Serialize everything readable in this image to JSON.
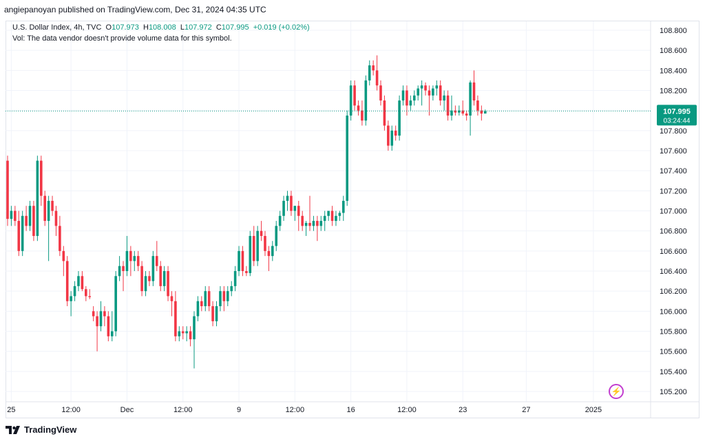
{
  "header": {
    "text": "angiepanoyan published on TradingView.com, Dec 31, 2024 04:35 UTC"
  },
  "legend": {
    "symbol": "U.S. Dollar Index, 4h, TVC",
    "o_label": "O",
    "o_value": "107.973",
    "h_label": "H",
    "h_value": "108.008",
    "l_label": "L",
    "l_value": "107.972",
    "c_label": "C",
    "c_value": "107.995",
    "change": "+0.019 (+0.02%)",
    "vol_note": "Vol: The data vendor doesn't provide volume data for this symbol."
  },
  "price_tag": {
    "price": "107.995",
    "countdown": "03:24:44"
  },
  "footer": {
    "brand": "TradingView"
  },
  "colors": {
    "up": "#089981",
    "down": "#f23645",
    "tag": "#089981",
    "grid": "#f0f3fa",
    "axis_text": "#131722"
  },
  "chart_data": {
    "type": "candlestick",
    "timeframe": "4h",
    "ylim": [
      105.05,
      108.95
    ],
    "y_ticks": [
      "108.800",
      "108.600",
      "108.400",
      "108.200",
      "108.000",
      "107.800",
      "107.600",
      "107.400",
      "107.200",
      "107.000",
      "106.800",
      "106.600",
      "106.400",
      "106.200",
      "106.000",
      "105.800",
      "105.600",
      "105.400",
      "105.200"
    ],
    "x_ticks": [
      {
        "label": "25",
        "index": 1
      },
      {
        "label": "12:00",
        "index": 17
      },
      {
        "label": "Dec",
        "index": 32
      },
      {
        "label": "12:00",
        "index": 47
      },
      {
        "label": "9",
        "index": 62
      },
      {
        "label": "12:00",
        "index": 77
      },
      {
        "label": "16",
        "index": 92
      },
      {
        "label": "12:00",
        "index": 107
      },
      {
        "label": "23",
        "index": 122
      },
      {
        "label": "27",
        "index": 139
      },
      {
        "label": "2025",
        "index": 157
      }
    ],
    "last_price": 107.995,
    "candles": [
      [
        107.5,
        107.55,
        106.85,
        106.92
      ],
      [
        106.92,
        107.05,
        106.85,
        107.0
      ],
      [
        107.0,
        107.05,
        106.85,
        106.9
      ],
      [
        106.9,
        107.0,
        106.55,
        106.6
      ],
      [
        106.6,
        107.0,
        106.55,
        106.95
      ],
      [
        106.95,
        107.05,
        106.8,
        106.85
      ],
      [
        106.85,
        107.1,
        106.8,
        107.05
      ],
      [
        107.05,
        107.1,
        106.7,
        106.75
      ],
      [
        106.75,
        107.55,
        106.7,
        107.5
      ],
      [
        107.5,
        107.55,
        107.05,
        107.15
      ],
      [
        107.15,
        107.2,
        106.85,
        106.9
      ],
      [
        106.9,
        107.15,
        106.5,
        107.1
      ],
      [
        107.1,
        107.15,
        106.95,
        107.0
      ],
      [
        107.0,
        107.05,
        106.75,
        106.85
      ],
      [
        106.85,
        106.95,
        106.55,
        106.6
      ],
      [
        106.6,
        106.65,
        106.35,
        106.5
      ],
      [
        106.5,
        106.55,
        106.05,
        106.1
      ],
      [
        106.1,
        106.2,
        105.95,
        106.15
      ],
      [
        106.15,
        106.3,
        106.1,
        106.25
      ],
      [
        106.25,
        106.4,
        106.2,
        106.35
      ],
      [
        106.35,
        106.4,
        106.2,
        106.22
      ],
      [
        106.22,
        106.25,
        106.1,
        106.15
      ],
      [
        106.15,
        106.22,
        106.12,
        106.14
      ],
      [
        106.0,
        106.05,
        105.9,
        105.95
      ],
      [
        105.95,
        106.0,
        105.6,
        105.85
      ],
      [
        105.85,
        106.1,
        105.8,
        106.0
      ],
      [
        106.0,
        106.05,
        105.85,
        105.95
      ],
      [
        105.95,
        106.0,
        105.7,
        105.75
      ],
      [
        105.75,
        106.0,
        105.7,
        105.8
      ],
      [
        105.8,
        106.4,
        105.75,
        106.35
      ],
      [
        106.35,
        106.55,
        106.3,
        106.45
      ],
      [
        106.45,
        106.5,
        106.2,
        106.4
      ],
      [
        106.4,
        106.75,
        106.35,
        106.6
      ],
      [
        106.6,
        106.65,
        106.35,
        106.5
      ],
      [
        106.5,
        106.6,
        106.4,
        106.55
      ],
      [
        106.55,
        106.6,
        106.4,
        106.45
      ],
      [
        106.45,
        106.5,
        106.15,
        106.2
      ],
      [
        106.2,
        106.4,
        106.15,
        106.35
      ],
      [
        106.35,
        106.4,
        106.25,
        106.3
      ],
      [
        106.3,
        106.6,
        106.25,
        106.55
      ],
      [
        106.55,
        106.7,
        106.4,
        106.45
      ],
      [
        106.45,
        106.5,
        106.2,
        106.25
      ],
      [
        106.25,
        106.45,
        106.2,
        106.4
      ],
      [
        106.4,
        106.45,
        106.1,
        106.15
      ],
      [
        106.15,
        106.2,
        105.95,
        106.1
      ],
      [
        106.1,
        106.2,
        105.7,
        105.75
      ],
      [
        105.75,
        105.85,
        105.7,
        105.8
      ],
      [
        105.8,
        105.85,
        105.72,
        105.78
      ],
      [
        105.78,
        105.85,
        105.7,
        105.8
      ],
      [
        105.8,
        105.85,
        105.65,
        105.72
      ],
      [
        105.72,
        106.0,
        105.43,
        105.95
      ],
      [
        105.95,
        106.15,
        105.9,
        106.1
      ],
      [
        106.1,
        106.15,
        106.0,
        106.05
      ],
      [
        106.05,
        106.25,
        106.0,
        106.2
      ],
      [
        106.2,
        106.25,
        106.0,
        106.05
      ],
      [
        106.05,
        106.1,
        105.85,
        105.9
      ],
      [
        105.9,
        106.1,
        105.85,
        106.05
      ],
      [
        106.05,
        106.25,
        106.0,
        106.2
      ],
      [
        106.2,
        106.25,
        106.0,
        106.1
      ],
      [
        106.1,
        106.25,
        106.05,
        106.2
      ],
      [
        106.2,
        106.3,
        106.15,
        106.25
      ],
      [
        106.25,
        106.45,
        106.2,
        106.4
      ],
      [
        106.4,
        106.65,
        106.35,
        106.6
      ],
      [
        106.6,
        106.65,
        106.35,
        106.4
      ],
      [
        106.4,
        106.45,
        106.35,
        106.38
      ],
      [
        106.38,
        106.8,
        106.35,
        106.75
      ],
      [
        106.75,
        106.85,
        106.45,
        106.5
      ],
      [
        106.5,
        106.85,
        106.45,
        106.8
      ],
      [
        106.8,
        106.9,
        106.7,
        106.75
      ],
      [
        106.75,
        106.8,
        106.55,
        106.6
      ],
      [
        106.6,
        106.65,
        106.4,
        106.55
      ],
      [
        106.55,
        106.7,
        106.5,
        106.65
      ],
      [
        106.65,
        106.9,
        106.6,
        106.85
      ],
      [
        106.85,
        107.0,
        106.8,
        106.95
      ],
      [
        106.95,
        107.15,
        106.9,
        107.1
      ],
      [
        107.1,
        107.2,
        107.0,
        107.15
      ],
      [
        107.15,
        107.2,
        106.95,
        107.0
      ],
      [
        107.0,
        107.05,
        106.9,
        107.05
      ],
      [
        107.05,
        107.1,
        106.8,
        106.95
      ],
      [
        106.95,
        107.0,
        106.8,
        106.85
      ],
      [
        106.85,
        106.9,
        106.75,
        106.88
      ],
      [
        106.88,
        107.15,
        106.8,
        106.85
      ],
      [
        106.85,
        106.95,
        106.8,
        106.9
      ],
      [
        106.9,
        106.95,
        106.7,
        106.85
      ],
      [
        106.85,
        106.95,
        106.8,
        106.9
      ],
      [
        106.9,
        107.0,
        106.8,
        106.95
      ],
      [
        106.95,
        107.0,
        106.9,
        107.0
      ],
      [
        107.0,
        107.05,
        106.85,
        106.9
      ],
      [
        106.9,
        107.0,
        106.85,
        106.95
      ],
      [
        106.95,
        107.0,
        106.9,
        106.98
      ],
      [
        106.98,
        107.15,
        106.9,
        107.1
      ],
      [
        107.1,
        108.0,
        107.05,
        107.95
      ],
      [
        107.95,
        108.3,
        107.9,
        108.25
      ],
      [
        108.25,
        108.3,
        108.0,
        108.05
      ],
      [
        108.05,
        108.1,
        107.95,
        108.0
      ],
      [
        108.0,
        108.1,
        107.85,
        107.9
      ],
      [
        107.9,
        108.35,
        107.85,
        108.3
      ],
      [
        108.3,
        108.5,
        108.25,
        108.45
      ],
      [
        108.45,
        108.5,
        108.35,
        108.4
      ],
      [
        108.4,
        108.55,
        108.2,
        108.25
      ],
      [
        108.25,
        108.3,
        108.05,
        108.1
      ],
      [
        108.1,
        108.15,
        107.8,
        107.85
      ],
      [
        107.85,
        107.9,
        107.6,
        107.65
      ],
      [
        107.65,
        107.85,
        107.6,
        107.8
      ],
      [
        107.8,
        107.85,
        107.7,
        107.75
      ],
      [
        107.75,
        108.15,
        107.7,
        108.1
      ],
      [
        108.1,
        108.25,
        108.05,
        108.2
      ],
      [
        108.2,
        108.25,
        107.95,
        108.05
      ],
      [
        108.05,
        108.15,
        108.0,
        108.1
      ],
      [
        108.1,
        108.2,
        108.05,
        108.15
      ],
      [
        108.15,
        108.25,
        108.1,
        108.22
      ],
      [
        108.22,
        108.3,
        108.05,
        108.25
      ],
      [
        108.25,
        108.28,
        108.15,
        108.2
      ],
      [
        108.2,
        108.25,
        107.95,
        108.15
      ],
      [
        108.15,
        108.25,
        108.1,
        108.22
      ],
      [
        108.22,
        108.3,
        108.15,
        108.25
      ],
      [
        108.25,
        108.3,
        108.05,
        108.1
      ],
      [
        108.1,
        108.2,
        108.0,
        108.15
      ],
      [
        108.15,
        108.2,
        107.9,
        107.95
      ],
      [
        107.95,
        108.15,
        107.9,
        108.0
      ],
      [
        108.0,
        108.05,
        107.95,
        107.98
      ],
      [
        107.98,
        108.05,
        107.95,
        108.0
      ],
      [
        108.0,
        108.1,
        107.95,
        107.97
      ],
      [
        107.97,
        108.0,
        107.9,
        107.95
      ],
      [
        107.95,
        108.3,
        107.75,
        108.28
      ],
      [
        108.28,
        108.4,
        108.05,
        108.1
      ],
      [
        108.1,
        108.15,
        107.95,
        108.0
      ],
      [
        108.0,
        108.05,
        107.9,
        107.97
      ],
      [
        107.97,
        108.01,
        107.97,
        107.995
      ]
    ]
  }
}
